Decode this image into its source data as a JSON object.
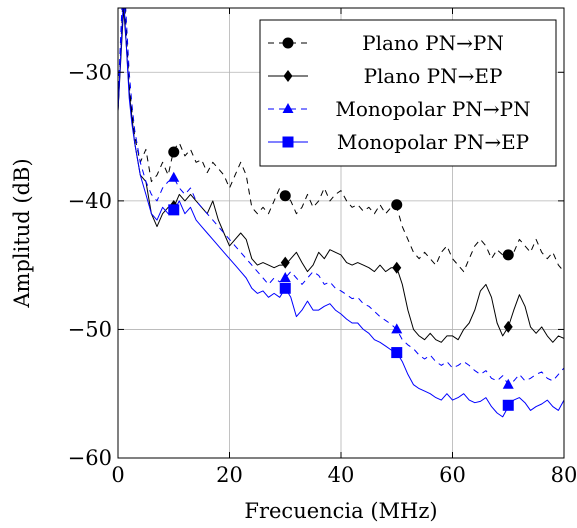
{
  "chart_data": {
    "type": "line",
    "title": "",
    "xlabel": "Frecuencia (MHz)",
    "ylabel": "Amplitud (dB)",
    "xlim": [
      0,
      80
    ],
    "ylim": [
      -60,
      -25
    ],
    "xticks": [
      0,
      20,
      40,
      60,
      80
    ],
    "yticks": [
      -60,
      -50,
      -40,
      -30
    ],
    "xtick_labels": [
      "0",
      "20",
      "40",
      "60",
      "80"
    ],
    "ytick_labels": [
      "−60",
      "−50",
      "−40",
      "−30"
    ],
    "grid": true,
    "legend_position": "top-right",
    "series": [
      {
        "name": "Plano PN→PN",
        "color": "#000000",
        "dash": "dashed",
        "marker": "circle",
        "x": [
          0,
          0.5,
          1,
          1.5,
          2,
          2.5,
          3,
          4,
          5,
          6,
          7,
          8,
          9,
          10,
          11,
          12,
          13,
          14,
          15,
          16,
          17,
          18,
          19,
          20,
          21,
          22,
          23,
          24,
          25,
          26,
          27,
          28,
          29,
          30,
          31,
          32,
          33,
          34,
          35,
          36,
          37,
          38,
          39,
          40,
          41,
          42,
          43,
          44,
          45,
          46,
          47,
          48,
          49,
          50,
          51,
          52,
          53,
          54,
          55,
          56,
          57,
          58,
          59,
          60,
          61,
          62,
          63,
          64,
          65,
          66,
          67,
          68,
          69,
          70,
          71,
          72,
          73,
          74,
          75,
          76,
          77,
          78,
          79,
          80
        ],
        "y": [
          -33,
          -28,
          -23,
          -27,
          -31,
          -33,
          -35,
          -37,
          -36,
          -38.5,
          -38,
          -37,
          -38,
          -36,
          -35.5,
          -36.5,
          -36,
          -37,
          -36.8,
          -37.8,
          -37,
          -37.5,
          -38,
          -39,
          -38,
          -37,
          -38,
          -40.5,
          -41,
          -40.5,
          -41,
          -40,
          -39,
          -39.5,
          -40,
          -41,
          -40.5,
          -39.5,
          -40.5,
          -40,
          -39,
          -40,
          -39.5,
          -39.2,
          -40,
          -40.5,
          -40.3,
          -40.8,
          -40.5,
          -41,
          -40.3,
          -41,
          -40.5,
          -40.5,
          -42,
          -43,
          -44,
          -44.5,
          -44,
          -44.5,
          -45,
          -44,
          -43.5,
          -44.5,
          -45,
          -45.5,
          -44.5,
          -43.5,
          -43,
          -43.5,
          -44.5,
          -43.8,
          -44.2,
          -44.5,
          -44,
          -43,
          -43.5,
          -44,
          -43,
          -44,
          -44.5,
          -44,
          -45,
          -45.5
        ],
        "markers_x": [
          10,
          30,
          50,
          70
        ],
        "markers_y": [
          -36.2,
          -39.6,
          -40.3,
          -44.2
        ]
      },
      {
        "name": "Plano PN→EP",
        "color": "#000000",
        "dash": "solid",
        "marker": "diamond",
        "x": [
          0,
          0.5,
          1,
          1.5,
          2,
          2.5,
          3,
          4,
          5,
          6,
          7,
          8,
          9,
          10,
          11,
          12,
          13,
          14,
          15,
          16,
          17,
          18,
          19,
          20,
          21,
          22,
          23,
          24,
          25,
          26,
          27,
          28,
          29,
          30,
          31,
          32,
          33,
          34,
          35,
          36,
          37,
          38,
          39,
          40,
          41,
          42,
          43,
          44,
          45,
          46,
          47,
          48,
          49,
          50,
          51,
          52,
          53,
          54,
          55,
          56,
          57,
          58,
          59,
          60,
          61,
          62,
          63,
          64,
          65,
          66,
          67,
          68,
          69,
          70,
          71,
          72,
          73,
          74,
          75,
          76,
          77,
          78,
          79,
          80
        ],
        "y": [
          -33,
          -29,
          -25,
          -28,
          -31.5,
          -33.5,
          -35.5,
          -38,
          -38.5,
          -41,
          -42,
          -41,
          -40.5,
          -40.5,
          -39.5,
          -40,
          -39.5,
          -40,
          -40.5,
          -41,
          -40,
          -41.5,
          -42.5,
          -43.5,
          -43,
          -42.5,
          -43,
          -44.5,
          -45,
          -44.8,
          -45,
          -45.2,
          -45,
          -45,
          -44.5,
          -44,
          -44.8,
          -45.5,
          -45,
          -44,
          -44.5,
          -43.8,
          -44,
          -44.2,
          -44.8,
          -45,
          -44.8,
          -45,
          -45.2,
          -45.5,
          -45,
          -45.5,
          -45.2,
          -45.2,
          -46.5,
          -48.5,
          -50,
          -50.5,
          -50.8,
          -50.3,
          -50.8,
          -51,
          -50.5,
          -50.5,
          -50.8,
          -50,
          -49.5,
          -48.5,
          -47,
          -46.5,
          -47.5,
          -49.5,
          -50.5,
          -49.8,
          -48.5,
          -47.3,
          -48.2,
          -49.8,
          -50.3,
          -49.8,
          -50.5,
          -51,
          -50.5,
          -50.7
        ],
        "markers_x": [
          10,
          30,
          50,
          70
        ],
        "markers_y": [
          -40.4,
          -44.8,
          -45.2,
          -49.8
        ]
      },
      {
        "name": "Monopolar PN→PN",
        "color": "#0000ff",
        "dash": "dashed",
        "marker": "triangle",
        "x": [
          0,
          0.5,
          1,
          1.5,
          2,
          2.5,
          3,
          4,
          5,
          6,
          7,
          8,
          9,
          10,
          11,
          12,
          13,
          14,
          15,
          16,
          17,
          18,
          19,
          20,
          21,
          22,
          23,
          24,
          25,
          26,
          27,
          28,
          29,
          30,
          31,
          32,
          33,
          34,
          35,
          36,
          37,
          38,
          39,
          40,
          41,
          42,
          43,
          44,
          45,
          46,
          47,
          48,
          49,
          50,
          51,
          52,
          53,
          54,
          55,
          56,
          57,
          58,
          59,
          60,
          61,
          62,
          63,
          64,
          65,
          66,
          67,
          68,
          69,
          70,
          71,
          72,
          73,
          74,
          75,
          76,
          77,
          78,
          79,
          80
        ],
        "y": [
          -32,
          -27,
          -22,
          -26,
          -30,
          -32.5,
          -34.5,
          -37,
          -38.5,
          -39.5,
          -40,
          -39,
          -38.5,
          -38.2,
          -39,
          -39.5,
          -39,
          -40,
          -40.5,
          -41,
          -41.5,
          -42,
          -42.5,
          -43,
          -43.5,
          -44,
          -44.5,
          -45,
          -45.5,
          -46,
          -46.5,
          -46,
          -46.3,
          -46,
          -45.5,
          -46,
          -46.5,
          -46,
          -45.5,
          -45.8,
          -46.5,
          -46.3,
          -46.8,
          -47,
          -47.3,
          -47.6,
          -47.5,
          -48,
          -48.2,
          -48.6,
          -49,
          -49.3,
          -49.6,
          -50,
          -50.8,
          -51.2,
          -51.5,
          -52,
          -52.3,
          -52,
          -52.5,
          -52.8,
          -52.5,
          -53,
          -52.8,
          -52.5,
          -52.8,
          -53.2,
          -53.5,
          -53.2,
          -53.8,
          -54,
          -53.6,
          -54.3,
          -54,
          -53.5,
          -54,
          -53.8,
          -53.5,
          -53.3,
          -53.8,
          -54,
          -53.5,
          -53
        ],
        "markers_x": [
          10,
          30,
          50,
          70
        ],
        "markers_y": [
          -38.2,
          -46.0,
          -50.0,
          -54.3
        ]
      },
      {
        "name": "Monopolar PN→EP",
        "color": "#0000ff",
        "dash": "solid",
        "marker": "square",
        "x": [
          0,
          0.5,
          1,
          1.5,
          2,
          2.5,
          3,
          4,
          5,
          6,
          7,
          8,
          9,
          10,
          11,
          12,
          13,
          14,
          15,
          16,
          17,
          18,
          19,
          20,
          21,
          22,
          23,
          24,
          25,
          26,
          27,
          28,
          29,
          30,
          31,
          32,
          33,
          34,
          35,
          36,
          37,
          38,
          39,
          40,
          41,
          42,
          43,
          44,
          45,
          46,
          47,
          48,
          49,
          50,
          51,
          52,
          53,
          54,
          55,
          56,
          57,
          58,
          59,
          60,
          61,
          62,
          63,
          64,
          65,
          66,
          67,
          68,
          69,
          70,
          71,
          72,
          73,
          74,
          75,
          76,
          77,
          78,
          79,
          80
        ],
        "y": [
          -33,
          -28.5,
          -24,
          -28,
          -32,
          -34,
          -35.5,
          -38,
          -39.5,
          -41,
          -41.5,
          -40.5,
          -41,
          -40.8,
          -40,
          -41,
          -40.5,
          -41.5,
          -42,
          -42.5,
          -43,
          -43.5,
          -44,
          -44.5,
          -45,
          -45.5,
          -46,
          -46.8,
          -47.2,
          -47,
          -47.5,
          -47.2,
          -47.5,
          -46.8,
          -47.5,
          -49,
          -48.5,
          -47.8,
          -48.5,
          -48.5,
          -48.2,
          -48,
          -48.5,
          -48.8,
          -49.2,
          -49.5,
          -49.5,
          -50,
          -50.3,
          -50.8,
          -51,
          -51.3,
          -51.6,
          -51.8,
          -52.5,
          -53.5,
          -54.3,
          -54.6,
          -54.8,
          -55,
          -55.3,
          -55.5,
          -55,
          -55.5,
          -55.3,
          -55,
          -55.5,
          -55.7,
          -55.6,
          -55.3,
          -56,
          -56.5,
          -56.8,
          -56,
          -55.5,
          -55.3,
          -55.7,
          -56.3,
          -56,
          -55.8,
          -55.5,
          -56,
          -56.3,
          -55.5
        ],
        "markers_x": [
          10,
          30,
          50,
          70
        ],
        "markers_y": [
          -40.7,
          -46.8,
          -51.8,
          -55.9
        ]
      }
    ]
  }
}
